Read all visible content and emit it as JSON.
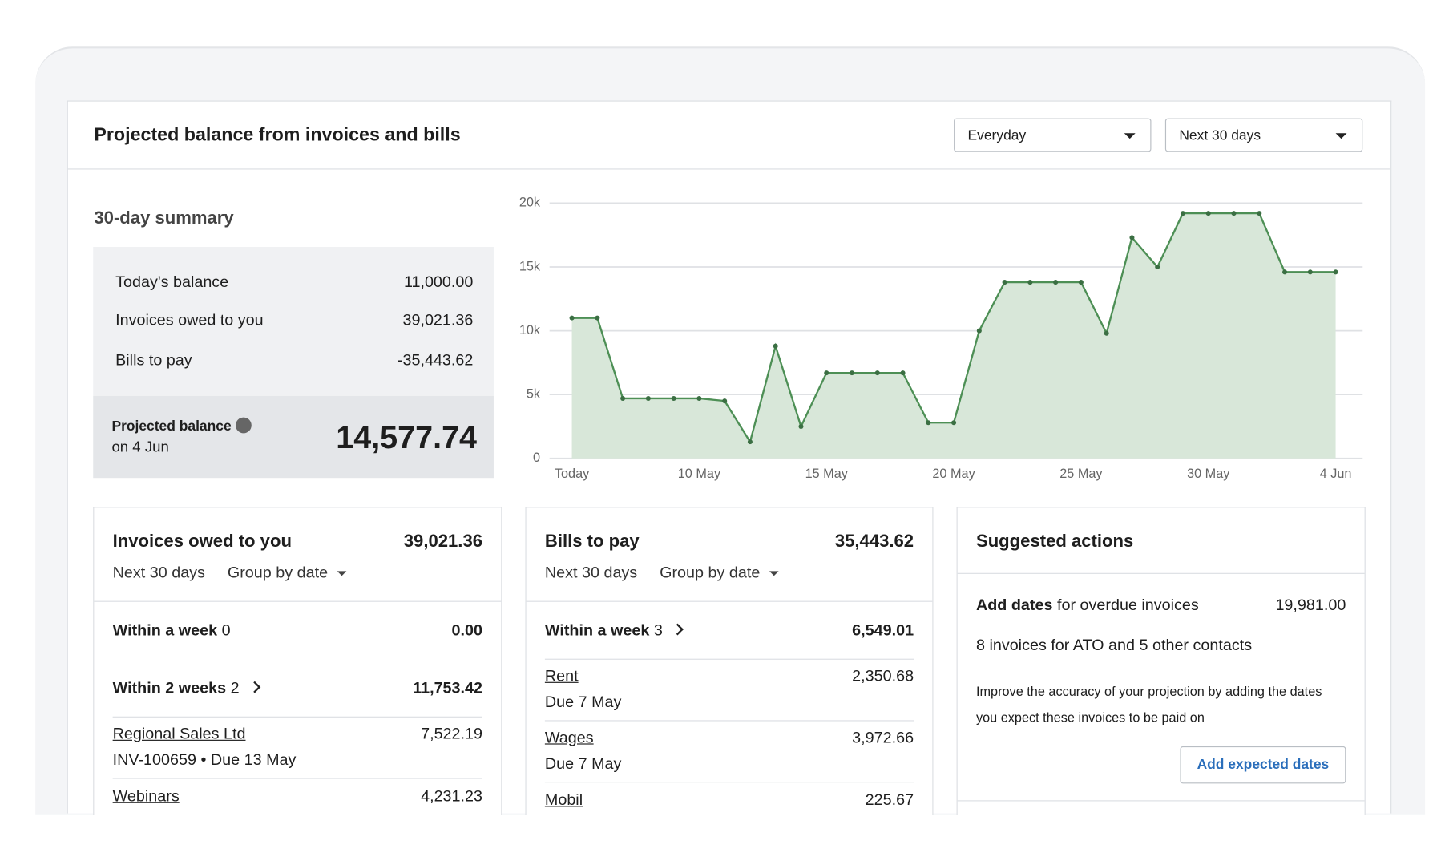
{
  "header": {
    "title": "Projected balance from invoices and bills",
    "account_select": "Everyday",
    "period_select": "Next 30 days"
  },
  "summary": {
    "title": "30-day summary",
    "rows": [
      {
        "label": "Today's balance",
        "value": "11,000.00"
      },
      {
        "label": "Invoices owed to you",
        "value": "39,021.36"
      },
      {
        "label": "Bills to pay",
        "value": "-35,443.62"
      }
    ],
    "projected_label": "Projected balance",
    "projected_date": "on 4 Jun",
    "projected_value": "14,577.74"
  },
  "chart_data": {
    "type": "area",
    "categories": [
      "Today",
      null,
      null,
      null,
      null,
      "10 May",
      null,
      null,
      null,
      null,
      "15 May",
      null,
      null,
      null,
      null,
      "20 May",
      null,
      null,
      null,
      null,
      "25 May",
      null,
      null,
      null,
      null,
      "30 May",
      null,
      null,
      null,
      null,
      "4 Jun"
    ],
    "values": [
      11000,
      11000,
      4700,
      4700,
      4700,
      4700,
      4500,
      1300,
      8800,
      2500,
      6700,
      6700,
      6700,
      6700,
      2800,
      2800,
      10000,
      13800,
      13800,
      13800,
      13800,
      9800,
      17300,
      15000,
      19200,
      19200,
      19200,
      19200,
      14600,
      14600,
      14600
    ],
    "color": "#4d8f55",
    "fill": "#d8e7d9",
    "ylim": [
      0,
      20000
    ],
    "yticks": [
      0,
      {
        "value": 5000,
        "label": "5k"
      },
      {
        "value": 10000,
        "label": "10k"
      },
      {
        "value": 15000,
        "label": "15k"
      },
      {
        "value": 20000,
        "label": "20k"
      }
    ],
    "grid": true
  },
  "invoices": {
    "title": "Invoices owed to you",
    "total": "39,021.36",
    "period": "Next 30 days",
    "group": "Group by date",
    "groups": [
      {
        "label": "Within a week",
        "count": "0",
        "total": "0.00"
      },
      {
        "label": "Within 2 weeks",
        "count": "2",
        "total": "11,753.42"
      }
    ],
    "items": [
      {
        "name": "Regional Sales Ltd",
        "value": "7,522.19",
        "detail": "INV-100659 • Due 13 May"
      },
      {
        "name": "Webinars",
        "value": "4,231.23"
      }
    ]
  },
  "bills": {
    "title": "Bills to pay",
    "total": "35,443.62",
    "period": "Next 30 days",
    "group": "Group by date",
    "groups": [
      {
        "label": "Within a week",
        "count": "3",
        "total": "6,549.01"
      }
    ],
    "items": [
      {
        "name": "Rent",
        "value": "2,350.68",
        "detail": "Due 7 May"
      },
      {
        "name": "Wages",
        "value": "3,972.66",
        "detail": "Due 7 May"
      },
      {
        "name": "Mobil",
        "value": "225.67"
      }
    ]
  },
  "actions": {
    "title": "Suggested actions",
    "item_bold": "Add dates",
    "item_rest": "for overdue invoices",
    "value": "19,981.00",
    "contacts": "8 invoices for ATO and 5 other contacts",
    "note": "Improve the accuracy of your projection by adding the dates you expect these invoices to be paid on",
    "button": "Add expected dates"
  }
}
